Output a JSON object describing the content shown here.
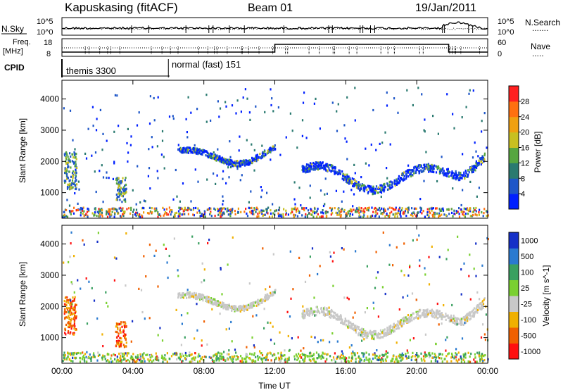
{
  "header": {
    "station": "Kapuskasing (fitACF)",
    "beam": "Beam 01",
    "date": "19/Jan/2011"
  },
  "strip1": {
    "left_label": "N.Sky",
    "left_ticks": [
      "10^5",
      "10^0"
    ],
    "right_ticks": [
      "10^5",
      "10^0"
    ],
    "right_label": "N.Search",
    "right_legend": "......."
  },
  "strip2": {
    "left_label_1": "Freq.",
    "left_label_2": "[MHz]",
    "left_ticks": [
      "18",
      "8"
    ],
    "right_ticks": [
      "60",
      "0"
    ],
    "right_label": "Nave",
    "right_legend": "....."
  },
  "cpid": {
    "label": "CPID",
    "modes": [
      "themis 3300",
      "normal (fast) 151"
    ],
    "change_hour": 6.0
  },
  "chart_data": [
    {
      "type": "heatmap",
      "title": "Power",
      "xlabel": "Time UT",
      "ylabel": "Slant Range [km]",
      "x_ticks": [
        "00:00",
        "04:00",
        "08:00",
        "12:00",
        "16:00",
        "20:00",
        "00:00"
      ],
      "xlim_hours": [
        0,
        24
      ],
      "y_ticks": [
        1000,
        2000,
        3000,
        4000
      ],
      "ylim": [
        180,
        4600
      ],
      "colorbar": {
        "label": "Power [dB]",
        "ticks": [
          "4",
          "8",
          "12",
          "16",
          "20",
          "24",
          "28"
        ],
        "range": [
          0,
          30
        ],
        "colors": [
          "#0020ff",
          "#1e56c8",
          "#2a7a70",
          "#56a640",
          "#c8c020",
          "#f0a010",
          "#ff7010",
          "#ff2020"
        ]
      },
      "echo_bands": [
        {
          "label": "near-range ground scatter",
          "hours": [
            0,
            24
          ],
          "range_km": [
            200,
            600
          ]
        },
        {
          "label": "echo arc",
          "hours": [
            6.5,
            12
          ],
          "range_km": [
            2000,
            2600
          ]
        },
        {
          "label": "echo arc",
          "hours": [
            13.5,
            23.8
          ],
          "range_km": [
            1200,
            2400
          ]
        },
        {
          "label": "echo patch",
          "hours": [
            0.1,
            0.8
          ],
          "range_km": [
            1100,
            2500
          ]
        },
        {
          "label": "echo patch",
          "hours": [
            3,
            3.6
          ],
          "range_km": [
            700,
            1500
          ]
        }
      ]
    },
    {
      "type": "heatmap",
      "title": "Velocity",
      "xlabel": "Time UT",
      "ylabel": "Slant Range [km]",
      "x_ticks": [
        "00:00",
        "04:00",
        "08:00",
        "12:00",
        "16:00",
        "20:00",
        "00:00"
      ],
      "xlim_hours": [
        0,
        24
      ],
      "y_ticks": [
        1000,
        2000,
        3000,
        4000
      ],
      "ylim": [
        180,
        4600
      ],
      "colorbar": {
        "label": "Velocity [m s^-1]",
        "ticks": [
          "1000",
          "500",
          "100",
          "25",
          "-25",
          "-100",
          "-500",
          "-1000"
        ],
        "colors": [
          "#1530c8",
          "#2a7ad0",
          "#3aa060",
          "#7ad030",
          "#c8c8c8",
          "#f0b000",
          "#f06000",
          "#ff1010"
        ]
      }
    }
  ]
}
